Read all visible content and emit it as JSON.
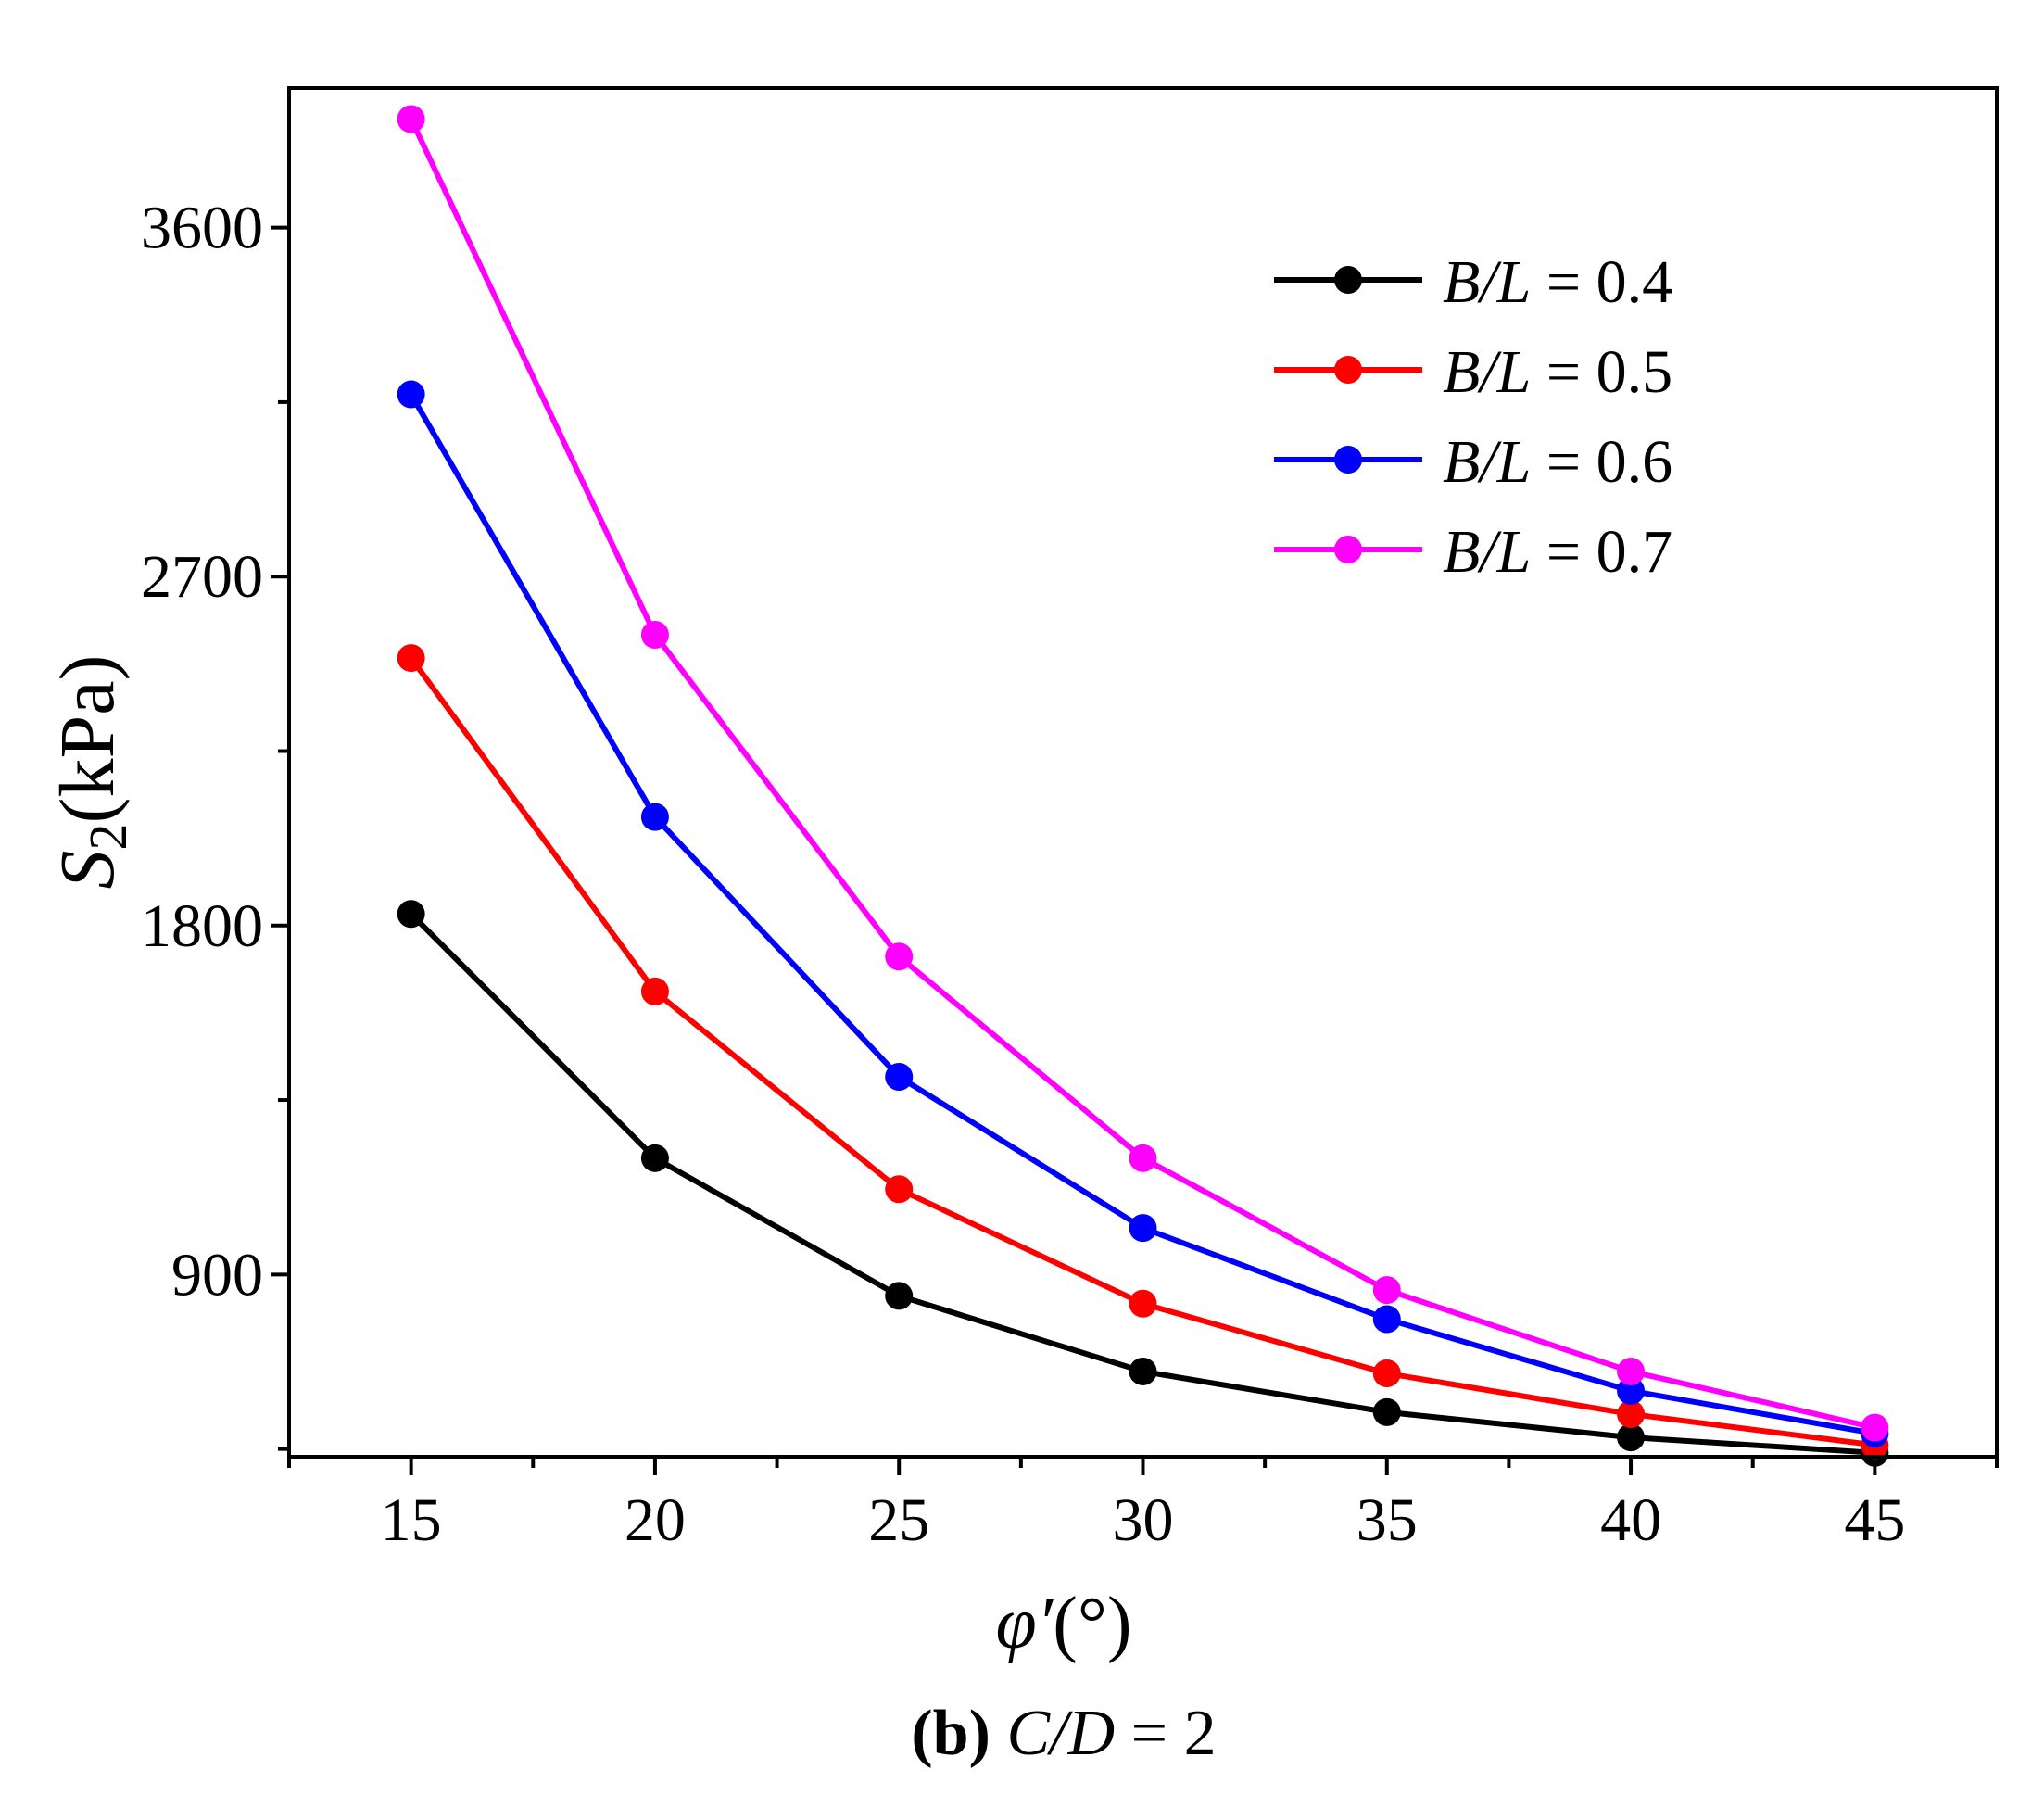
{
  "chart_data": {
    "type": "line",
    "title": "",
    "caption": {
      "label": "(b)",
      "var": "C/D",
      "eq": " = 2"
    },
    "xlabel": {
      "symbol": "φ′",
      "unit": "(°)"
    },
    "ylabel": {
      "symbol": "S",
      "sub": "2",
      "unit": "(kPa)"
    },
    "x": [
      15,
      20,
      25,
      30,
      35,
      40,
      45
    ],
    "xlim": [
      12.5,
      47.5
    ],
    "ylim": [
      430,
      3960
    ],
    "xticks": [
      15,
      20,
      25,
      30,
      35,
      40,
      45
    ],
    "yticks": [
      900,
      1800,
      2700,
      3600
    ],
    "grid": false,
    "legend_position": "top-right",
    "series": [
      {
        "name": "B/L = 0.4",
        "var": "B/L",
        "eq": " = 0.4",
        "color": "#000000",
        "values": [
          1830,
          1200,
          845,
          650,
          545,
          480,
          440
        ]
      },
      {
        "name": "B/L = 0.5",
        "var": "B/L",
        "eq": " = 0.5",
        "color": "#ff0000",
        "values": [
          2490,
          1630,
          1120,
          825,
          645,
          540,
          460
        ]
      },
      {
        "name": "B/L = 0.6",
        "var": "B/L",
        "eq": " = 0.6",
        "color": "#0000ff",
        "values": [
          3170,
          2080,
          1410,
          1020,
          785,
          600,
          490
        ]
      },
      {
        "name": "B/L = 0.7",
        "var": "B/L",
        "eq": " = 0.7",
        "color": "#ff00ff",
        "values": [
          3880,
          2550,
          1720,
          1200,
          860,
          650,
          505
        ]
      }
    ]
  }
}
